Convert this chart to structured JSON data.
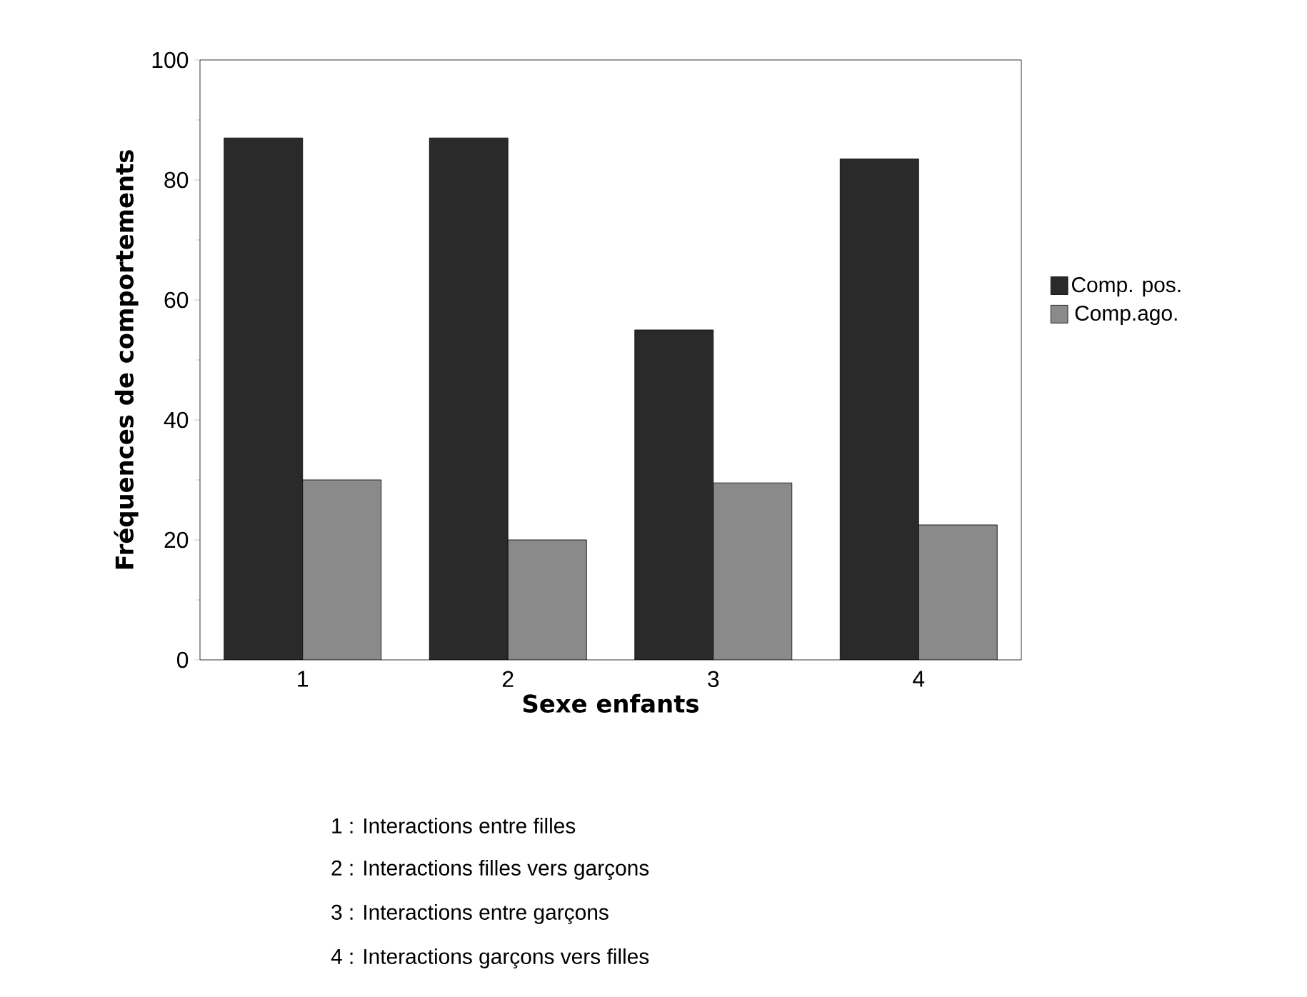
{
  "chart_data": {
    "type": "bar",
    "xlabel": "Sexe enfants",
    "ylabel": "Fréquences de comportements",
    "categories": [
      "1",
      "2",
      "3",
      "4"
    ],
    "series": [
      {
        "name": "Comp. pos.",
        "color": "#2a2a2a",
        "values": [
          87,
          87,
          55,
          83.5
        ]
      },
      {
        "name": "Comp.ago.",
        "color": "#8a8a8a",
        "values": [
          30,
          20,
          29.5,
          22.5
        ]
      }
    ],
    "ylim": [
      0,
      100
    ],
    "yticks": [
      0,
      20,
      40,
      60,
      80,
      100
    ],
    "legend": "right",
    "grid": false,
    "annotations": [
      "1 : Interactions entre filles",
      "2 : Interactions filles vers garçons",
      "3 : Interactions entre garçons",
      "4 : Interactions garçons vers filles"
    ]
  }
}
